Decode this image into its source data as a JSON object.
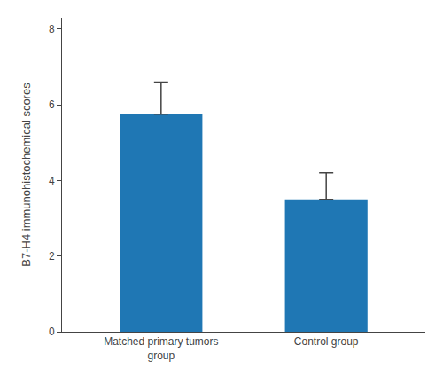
{
  "chart_data": {
    "type": "bar",
    "categories": [
      "Matched primary tumors\ngroup",
      "Control group"
    ],
    "values": [
      5.75,
      3.5
    ],
    "errors_upper": [
      0.85,
      0.7
    ],
    "ylabel": "B7-H4 immunohistochemical scores",
    "ylim": [
      0,
      8.3
    ],
    "yticks": [
      0,
      2,
      4,
      6,
      8
    ],
    "grid": false
  }
}
